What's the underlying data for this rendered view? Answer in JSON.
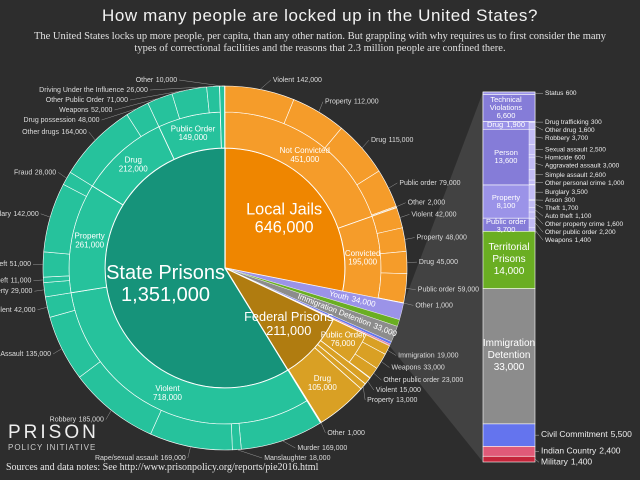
{
  "chart_data": {
    "type": "sunburst",
    "title": "How many people are locked up in the United States?",
    "subtitle": "The United States locks up more people, per capita, than any other nation.  But grappling with why requires us to first consider the many types of correctional facilities and the reasons that 2.3 million people are confined there.",
    "source": "Sources and data notes: See http://www.prisonpolicy.org/reports/pie2016.html",
    "logo": [
      "PRISON",
      "POLICY INITIATIVE"
    ],
    "slices": [
      {
        "name": "Local Jails",
        "value": 646000,
        "value_label": "646,000",
        "color": "#ef8600",
        "ring_color": "#f59c2a",
        "children": [
          {
            "name": "Not Convicted",
            "value": 451000,
            "value_label": "451,000",
            "children": [
              {
                "name": "Violent",
                "value": 142000,
                "value_label": "142,000"
              },
              {
                "name": "Property",
                "value": 112000,
                "value_label": "112,000"
              },
              {
                "name": "Drug",
                "value": 115000,
                "value_label": "115,000"
              },
              {
                "name": "Public order",
                "value": 79000,
                "value_label": "79,000"
              },
              {
                "name": "Other",
                "value": 2000,
                "value_label": "2,000"
              }
            ]
          },
          {
            "name": "Convicted",
            "value": 195000,
            "value_label": "195,000",
            "children": [
              {
                "name": "Violent",
                "value": 42000,
                "value_label": "42,000"
              },
              {
                "name": "Property",
                "value": 48000,
                "value_label": "48,000"
              },
              {
                "name": "Drug",
                "value": 45000,
                "value_label": "45,000"
              },
              {
                "name": "Public order",
                "value": 59000,
                "value_label": "59,000"
              },
              {
                "name": "Other",
                "value": 1000,
                "value_label": "1,000"
              }
            ]
          }
        ]
      },
      {
        "name": "Youth",
        "value": 34000,
        "value_label": "34,000",
        "color": "#9b93e8",
        "ring_color": "#857cd8",
        "exploded": true,
        "children": [
          {
            "name": "Status",
            "value": 600,
            "value_label": "600"
          },
          {
            "name": "Technical Violations",
            "value": 6600,
            "value_label": "6,600"
          },
          {
            "name": "Drug",
            "value": 1900,
            "value_label": "1,900",
            "children": [
              {
                "name": "Drug trafficking",
                "value": 300,
                "value_label": "300"
              },
              {
                "name": "Other drug",
                "value": 1600,
                "value_label": "1,600"
              }
            ]
          },
          {
            "name": "Person",
            "value": 13600,
            "value_label": "13,600",
            "children": [
              {
                "name": "Robbery",
                "value": 3700,
                "value_label": "3,700"
              },
              {
                "name": "Sexual assault",
                "value": 2500,
                "value_label": "2,500"
              },
              {
                "name": "Homicide",
                "value": 600,
                "value_label": "600"
              },
              {
                "name": "Aggravated assault",
                "value": 3000,
                "value_label": "3,000"
              },
              {
                "name": "Simple assault",
                "value": 2600,
                "value_label": "2,600"
              },
              {
                "name": "Other personal crime",
                "value": 1000,
                "value_label": "1,000"
              }
            ]
          },
          {
            "name": "Property",
            "value": 8100,
            "value_label": "8,100",
            "children": [
              {
                "name": "Burglary",
                "value": 3500,
                "value_label": "3,500"
              },
              {
                "name": "Arson",
                "value": 300,
                "value_label": "300"
              },
              {
                "name": "Theft",
                "value": 1700,
                "value_label": "1,700"
              },
              {
                "name": "Auto theft",
                "value": 1100,
                "value_label": "1,100"
              },
              {
                "name": "Other property crime",
                "value": 1600,
                "value_label": "1,600"
              }
            ]
          },
          {
            "name": "Public order",
            "value": 3700,
            "value_label": "3,700",
            "children": [
              {
                "name": "Other public order",
                "value": 2200,
                "value_label": "2,200"
              },
              {
                "name": "Weapons",
                "value": 1400,
                "value_label": "1,400"
              }
            ]
          }
        ]
      },
      {
        "name": "Territorial Prisons",
        "value": 14000,
        "value_label": "14,000",
        "color": "#6aae22",
        "exploded": true
      },
      {
        "name": "Immigration Detention",
        "value": 33000,
        "value_label": "33,000",
        "color": "#8c8c8c",
        "exploded": true
      },
      {
        "name": "Civil Commitment",
        "value": 5500,
        "value_label": "5,500",
        "color": "#6474ee",
        "exploded": true
      },
      {
        "name": "Indian Country",
        "value": 2400,
        "value_label": "2,400",
        "color": "#e05a78",
        "exploded": true
      },
      {
        "name": "Military",
        "value": 1400,
        "value_label": "1,400",
        "color": "#c4243a",
        "exploded": true
      },
      {
        "name": "Federal Prisons",
        "value": 211000,
        "value_label": "211,000",
        "color": "#b07c10",
        "ring_color": "#d9a024",
        "children": [
          {
            "name": "Public Order",
            "value": 76000,
            "value_label": "76,000",
            "children": [
              {
                "name": "Immigration",
                "value": 19000,
                "value_label": "19,000"
              },
              {
                "name": "Weapons",
                "value": 33000,
                "value_label": "33,000"
              },
              {
                "name": "Other public order",
                "value": 23000,
                "value_label": "23,000"
              }
            ]
          },
          {
            "name": "Violent",
            "value": 15000,
            "value_label": "15,000"
          },
          {
            "name": "Property",
            "value": 13000,
            "value_label": "13,000"
          },
          {
            "name": "Drug",
            "value": 105000,
            "value_label": "105,000"
          },
          {
            "name": "Other",
            "value": 1000,
            "value_label": "1,000"
          }
        ]
      },
      {
        "name": "State Prisons",
        "value": 1351000,
        "value_label": "1,351,000",
        "color": "#16937a",
        "ring_color": "#26c29c",
        "children": [
          {
            "name": "Violent",
            "value": 718000,
            "value_label": "718,000",
            "children": [
              {
                "name": "Murder",
                "value": 169000,
                "value_label": "169,000"
              },
              {
                "name": "Manslaughter",
                "value": 18000,
                "value_label": "18,000"
              },
              {
                "name": "Rape/sexual assault",
                "value": 169000,
                "value_label": "169,000"
              },
              {
                "name": "Robbery",
                "value": 185000,
                "value_label": "185,000"
              },
              {
                "name": "Assault",
                "value": 135000,
                "value_label": "135,000"
              },
              {
                "name": "Other violent",
                "value": 42000,
                "value_label": "42,000"
              }
            ]
          },
          {
            "name": "Property",
            "value": 261000,
            "value_label": "261,000",
            "children": [
              {
                "name": "Other property",
                "value": 29000,
                "value_label": "29,000"
              },
              {
                "name": "Car theft",
                "value": 11000,
                "value_label": "11,000"
              },
              {
                "name": "Theft",
                "value": 51000,
                "value_label": "51,000"
              },
              {
                "name": "Burglary",
                "value": 142000,
                "value_label": "142,000"
              },
              {
                "name": "Fraud",
                "value": 28000,
                "value_label": "28,000"
              }
            ]
          },
          {
            "name": "Drug",
            "value": 212000,
            "value_label": "212,000",
            "children": [
              {
                "name": "Other drugs",
                "value": 164000,
                "value_label": "164,000"
              },
              {
                "name": "Drug possession",
                "value": 48000,
                "value_label": "48,000"
              }
            ]
          },
          {
            "name": "Public Order",
            "value": 149000,
            "value_label": "149,000",
            "children": [
              {
                "name": "Weapons",
                "value": 52000,
                "value_label": "52,000"
              },
              {
                "name": "Other Public Order",
                "value": 71000,
                "value_label": "71,000"
              },
              {
                "name": "Driving Under the Influence",
                "value": 26000,
                "value_label": "26,000"
              }
            ]
          },
          {
            "name": "Other",
            "value": 10000,
            "value_label": "10,000"
          }
        ]
      }
    ]
  }
}
